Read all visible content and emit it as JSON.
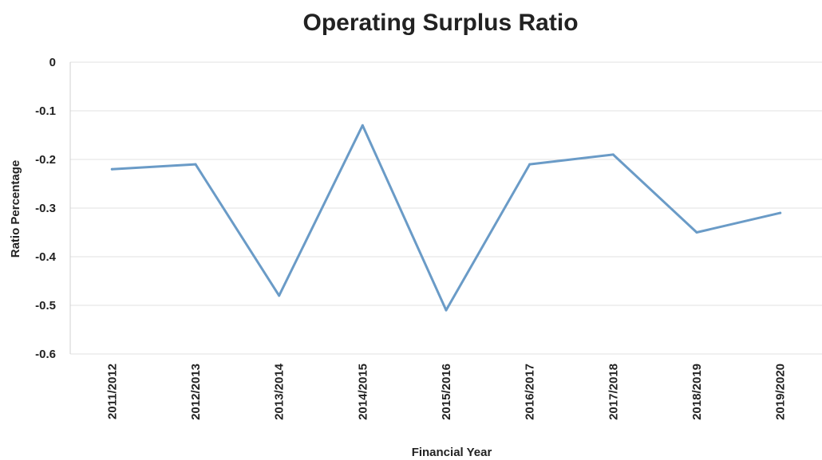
{
  "chart_data": {
    "type": "line",
    "title": "Operating Surplus Ratio",
    "xlabel": "Financial Year",
    "ylabel": "Ratio Percentage",
    "categories": [
      "2011/2012",
      "2012/2013",
      "2013/2014",
      "2014/2015",
      "2015/2016",
      "2016/2017",
      "2017/2018",
      "2018/2019",
      "2019/2020"
    ],
    "series": [
      {
        "values": [
          -0.22,
          -0.21,
          -0.48,
          -0.13,
          -0.51,
          -0.21,
          -0.19,
          -0.35,
          -0.31
        ],
        "color": "#6a9bc7"
      }
    ],
    "ylim": [
      -0.6,
      0
    ],
    "yticks": [
      0,
      -0.1,
      -0.2,
      -0.3,
      -0.4,
      -0.5,
      -0.6
    ],
    "ytick_labels": [
      "0",
      "-0.1",
      "-0.2",
      "-0.3",
      "-0.4",
      "-0.5",
      "-0.6"
    ],
    "grid": true,
    "legend": "none"
  }
}
